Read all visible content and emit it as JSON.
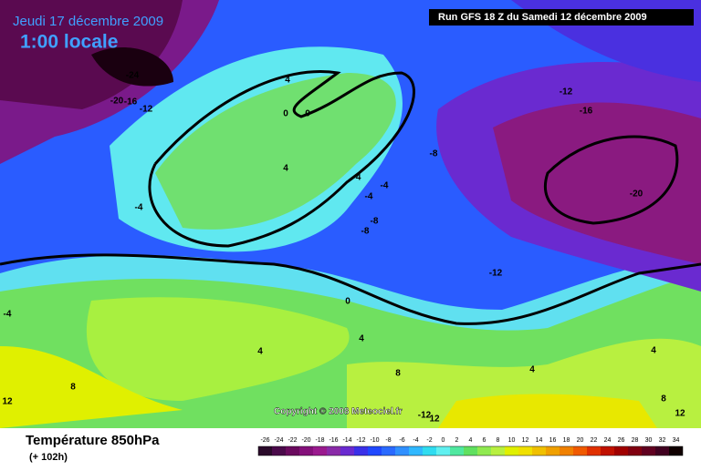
{
  "header": {
    "date": "Jeudi 17 décembre 2009",
    "time": "1:00 locale"
  },
  "run_info": "Run GFS 18 Z du Samedi 12 décembre 2009",
  "copyright": "Copyright © 2008 Meteociel.fr",
  "footer": {
    "title": "Température 850hPa",
    "subtitle": "(+ 102h)"
  },
  "contour_labels": [
    -24,
    -20,
    -16,
    -12,
    4,
    0,
    0,
    4,
    -4,
    -4,
    -4,
    -8,
    -12,
    -16,
    -20,
    -8,
    -8,
    -4,
    -12,
    0,
    -4,
    4,
    4,
    4,
    4,
    8,
    8,
    8,
    12,
    -12,
    12,
    12
  ],
  "legend": {
    "labels": [
      -26,
      -24,
      -22,
      -20,
      -18,
      -16,
      -14,
      -12,
      -10,
      -8,
      -6,
      -4,
      -2,
      0,
      2,
      4,
      6,
      8,
      10,
      12,
      14,
      16,
      18,
      20,
      22,
      24,
      26,
      28,
      30,
      32,
      34
    ],
    "colors": [
      "#2a0a2a",
      "#4a0a4a",
      "#6a0a5e",
      "#84107a",
      "#9a1a8e",
      "#8a2aa8",
      "#6a2ad0",
      "#3a30e8",
      "#2048ff",
      "#2a6aff",
      "#3090ff",
      "#30b8ff",
      "#30dcf0",
      "#60f0f0",
      "#50e8a0",
      "#60e060",
      "#90ea50",
      "#b8f040",
      "#e0f000",
      "#f0e000",
      "#f0c000",
      "#f0a000",
      "#f08000",
      "#f05a00",
      "#e03000",
      "#c01000",
      "#a00000",
      "#800010",
      "#600020",
      "#400020",
      "#100000"
    ]
  }
}
